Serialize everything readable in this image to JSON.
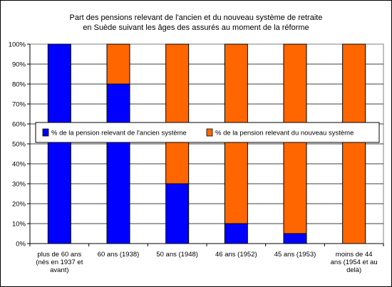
{
  "chart_data": {
    "type": "bar",
    "stacked": true,
    "title_lines": [
      "Part des pensions relevant de l'ancien et du nouveau système de retraite",
      "en Suède suivant les âges des assurés au moment de la réforme"
    ],
    "categories": [
      [
        "plus de 60 ans",
        "(nés en 1937 et",
        "avant)"
      ],
      [
        "60 ans (1938)"
      ],
      [
        "50 ans (1948)"
      ],
      [
        "46 ans (1952)"
      ],
      [
        "45 ans (1953)"
      ],
      [
        "moins de 44",
        "ans (1954 et au",
        "delà)"
      ]
    ],
    "series": [
      {
        "name": "% de la pension relevant de l'ancien système",
        "values": [
          100,
          80,
          30,
          10,
          5,
          0
        ],
        "color": "#0000ff"
      },
      {
        "name": "% de la pension relevant du nouveau système",
        "values": [
          0,
          20,
          70,
          90,
          95,
          100
        ],
        "color": "#ff6600"
      }
    ],
    "ylim": [
      0,
      100
    ],
    "yticks": [
      "0%",
      "10%",
      "20%",
      "30%",
      "40%",
      "50%",
      "60%",
      "70%",
      "80%",
      "90%",
      "100%"
    ],
    "grid": true,
    "legend_position": "middle"
  }
}
